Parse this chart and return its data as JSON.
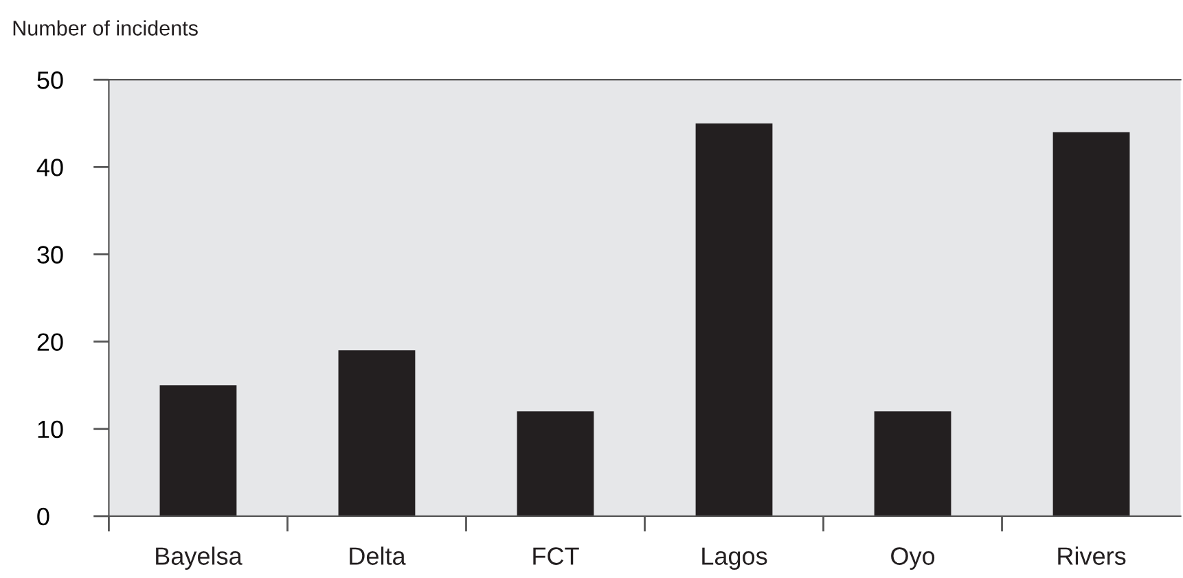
{
  "chart_data": {
    "type": "bar",
    "ylabel": "Number of incidents",
    "categories": [
      "Bayelsa",
      "Delta",
      "FCT",
      "Lagos",
      "Oyo",
      "Rivers"
    ],
    "values": [
      15,
      19,
      12,
      45,
      12,
      44
    ],
    "color": "#231f20",
    "ylim": [
      0,
      50
    ],
    "yticks": [
      0,
      10,
      20,
      30,
      40,
      50
    ],
    "grid": false,
    "legend": false
  }
}
